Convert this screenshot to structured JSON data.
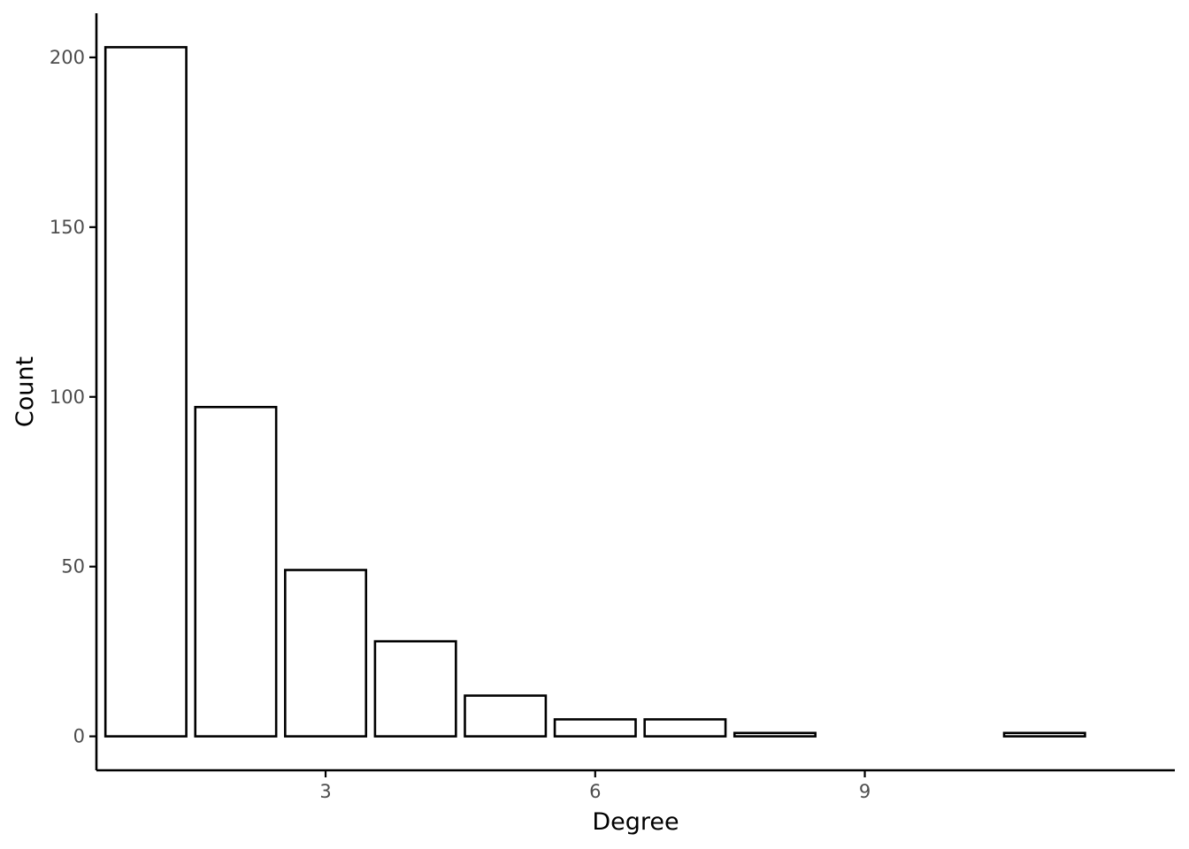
{
  "chart_data": {
    "type": "bar",
    "title": "",
    "xlabel": "Degree",
    "ylabel": "Count",
    "x": [
      1,
      2,
      3,
      4,
      5,
      6,
      7,
      8,
      11
    ],
    "values": [
      203,
      97,
      49,
      28,
      12,
      5,
      5,
      1,
      1
    ],
    "xlim": [
      0.45,
      12.45
    ],
    "ylim": [
      -10,
      213
    ],
    "xticks": [
      3,
      6,
      9
    ],
    "yticks": [
      0,
      50,
      100,
      150,
      200
    ],
    "grid": false,
    "legend": "none",
    "bar_fill": "#ffffff",
    "bar_stroke": "#000000"
  }
}
